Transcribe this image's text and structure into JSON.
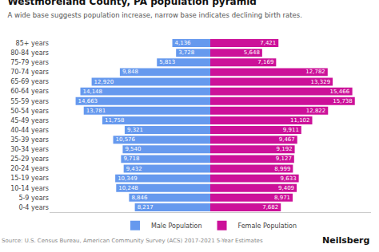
{
  "chart_data": {
    "type": "bar",
    "orientation": "horizontal",
    "title": "Westmoreland County, PA population pyramid",
    "subtitle": "A wide base suggests population increase, narrow base indicates declining birth rates.",
    "annotations": [
      "Source: U.S. Census Bureau, American Community Survey (ACS) 2017-2021 5-Year Estimates",
      "Neilsberg"
    ],
    "categories": [
      "0-4 years",
      "5-9 years",
      "10-14 years",
      "15-19 years",
      "20-24 years",
      "25-29 years",
      "30-34 years",
      "35-39 years",
      "40-44 years",
      "45-49 years",
      "50-54 years",
      "55-59 years",
      "60-64 years",
      "65-69 years",
      "70-74 years",
      "75-79 years",
      "80-84 years",
      "85+ years"
    ],
    "series": [
      {
        "name": "Male Population",
        "color": "#6699EE",
        "values": [
          8217,
          8846,
          10248,
          10349,
          9432,
          9718,
          9540,
          10576,
          9321,
          11758,
          13781,
          14663,
          14148,
          12920,
          9848,
          5813,
          3728,
          4136
        ],
        "value_labels": [
          "8,217",
          "8,846",
          "10,248",
          "10,349",
          "9,432",
          "9,718",
          "9,540",
          "10,576",
          "9,321",
          "11,758",
          "13,781",
          "14,663",
          "14,148",
          "12,920",
          "9,848",
          "5,813",
          "3,728",
          "4,136"
        ]
      },
      {
        "name": "Female Population",
        "color": "#CC1199",
        "values": [
          7682,
          8971,
          9409,
          9633,
          8999,
          9127,
          9192,
          9467,
          9911,
          11102,
          12822,
          15738,
          15466,
          13329,
          12782,
          7169,
          5648,
          7421
        ],
        "value_labels": [
          "7,682",
          "8,971",
          "9,409",
          "9,633",
          "8,999",
          "9,127",
          "9,192",
          "9,467",
          "9,911",
          "11,102",
          "12,822",
          "15,738",
          "15,466",
          "13,329",
          "12,782",
          "7,169",
          "5,648",
          "7,421"
        ]
      }
    ],
    "xlim": [
      -17500,
      17500
    ],
    "tick_labels": "y",
    "grid": false,
    "legend": "bottom",
    "data_labels": true
  }
}
